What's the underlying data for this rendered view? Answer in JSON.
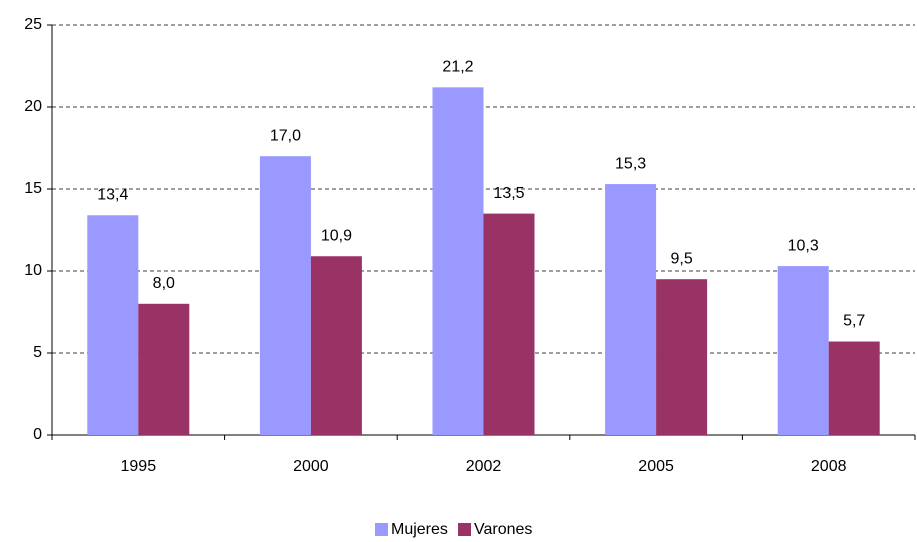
{
  "chart_data": {
    "type": "bar",
    "categories": [
      "1995",
      "2000",
      "2002",
      "2005",
      "2008"
    ],
    "series": [
      {
        "name": "Mujeres",
        "color": "#9999ff",
        "values": [
          13.4,
          17.0,
          21.2,
          15.3,
          10.3
        ],
        "value_labels": [
          "13,4",
          "17,0",
          "21,2",
          "15,3",
          "10,3"
        ]
      },
      {
        "name": "Varones",
        "color": "#993366",
        "values": [
          8.0,
          10.9,
          13.5,
          9.5,
          5.7
        ],
        "value_labels": [
          "8,0",
          "10,9",
          "13,5",
          "9,5",
          "5,7"
        ]
      }
    ],
    "ylim": [
      0,
      25
    ],
    "yticks": [
      0,
      5,
      10,
      15,
      20,
      25
    ],
    "grid": true,
    "legend": "bottom"
  }
}
